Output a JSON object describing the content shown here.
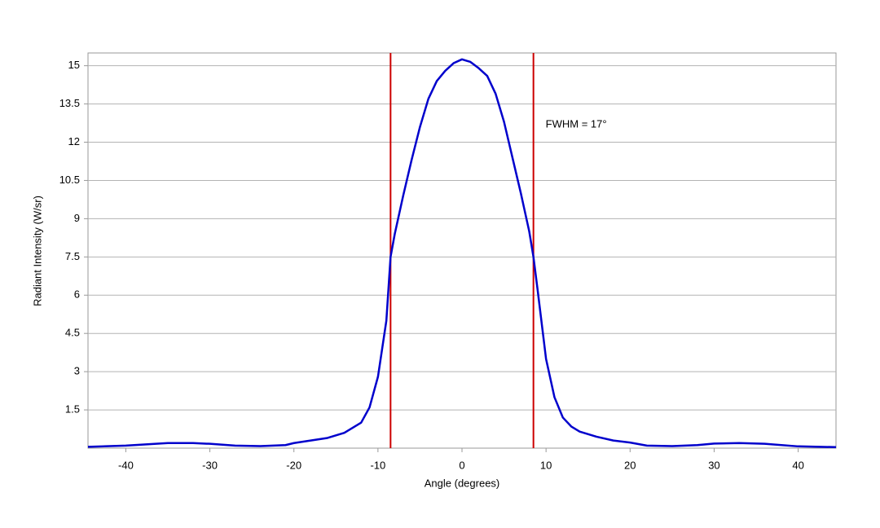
{
  "chart_data": {
    "type": "line",
    "x_label": "Angle (degrees)",
    "y_label": "Radiant Intensity (W/sr)",
    "annotation": "FWHM = 17°",
    "xlim": [
      -44.5,
      44.5
    ],
    "ylim": [
      0,
      15.5
    ],
    "xticks": [
      -40,
      -30,
      -20,
      -10,
      0,
      10,
      20,
      30,
      40
    ],
    "yticks": [
      1.5,
      3,
      4.5,
      6,
      7.5,
      9,
      10.5,
      12,
      13.5,
      15
    ],
    "grid": true,
    "vlines": {
      "color": "#cc0000",
      "values": [
        -8.5,
        8.5
      ]
    },
    "x": [
      -44.5,
      -40,
      -37,
      -35,
      -32,
      -30,
      -27,
      -24,
      -21,
      -20,
      -18,
      -16,
      -14,
      -12,
      -11,
      -10,
      -9,
      -8.5,
      -8,
      -7,
      -6,
      -5,
      -4,
      -3,
      -2,
      -1,
      0,
      0.5,
      1,
      2,
      3,
      4,
      5,
      6,
      7,
      8,
      8.5,
      9,
      10,
      11,
      12,
      13,
      14,
      16,
      18,
      20,
      22,
      25,
      28,
      30,
      33,
      36,
      40,
      44.5
    ],
    "series": [
      {
        "color": "#0000cc",
        "values": [
          0.05,
          0.1,
          0.16,
          0.2,
          0.2,
          0.17,
          0.1,
          0.08,
          0.12,
          0.2,
          0.3,
          0.4,
          0.6,
          1.0,
          1.6,
          2.8,
          5.0,
          7.5,
          8.4,
          9.9,
          11.3,
          12.6,
          13.7,
          14.4,
          14.8,
          15.1,
          15.25,
          15.2,
          15.15,
          14.9,
          14.6,
          13.9,
          12.8,
          11.4,
          10.0,
          8.5,
          7.5,
          6.2,
          3.5,
          2.0,
          1.2,
          0.85,
          0.65,
          0.45,
          0.3,
          0.22,
          0.1,
          0.08,
          0.12,
          0.18,
          0.2,
          0.17,
          0.07,
          0.04
        ]
      }
    ]
  }
}
